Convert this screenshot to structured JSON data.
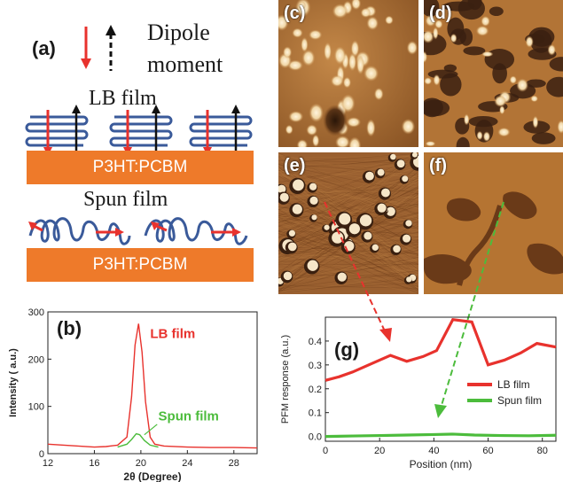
{
  "panel_a": {
    "label": "(a)",
    "legend_line1": "Dipole",
    "legend_line2": "moment",
    "lb_title": "LB film",
    "spun_title": "Spun film",
    "substrate_top": "P3HT:PCBM",
    "substrate_bottom": "P3HT:PCBM",
    "colors": {
      "dipole_red": "#e8322d",
      "dipole_black": "#111111",
      "chain": "#3a5a9a",
      "substrate": "#ee7a2a"
    }
  },
  "panel_b": {
    "label": "(b)"
  },
  "afm": {
    "c_label": "(c)",
    "d_label": "(d)",
    "e_label": "(e)",
    "f_label": "(f)",
    "colors": {
      "base": "#a86a2a",
      "bright": "#f4e0b8",
      "dark": "#3a2010"
    }
  },
  "panel_g": {
    "label": "(g)"
  },
  "chart_data": [
    {
      "type": "line",
      "panel": "b",
      "xlabel": "2θ (Degree)",
      "ylabel": "Intensity ( a.u.)",
      "xlim": [
        12,
        30
      ],
      "ylim": [
        0,
        300
      ],
      "xticks": [
        12,
        16,
        20,
        24,
        28
      ],
      "yticks": [
        0,
        100,
        200,
        300
      ],
      "series": [
        {
          "name": "LB film",
          "color": "#e8322d",
          "x": [
            12,
            14,
            16,
            17,
            18,
            18.8,
            19.2,
            19.5,
            19.8,
            20.1,
            20.4,
            20.8,
            21.2,
            22,
            24,
            26,
            28,
            30
          ],
          "y": [
            20,
            17,
            14,
            15,
            18,
            35,
            120,
            230,
            275,
            215,
            110,
            35,
            20,
            16,
            14,
            13,
            13,
            12
          ]
        },
        {
          "name": "Spun film",
          "color": "#4cbc3c",
          "x": [
            18,
            18.8,
            19.2,
            19.6,
            19.9,
            20.3,
            20.8,
            21.5
          ],
          "y": [
            14,
            20,
            30,
            42,
            40,
            28,
            18,
            14
          ]
        }
      ],
      "annotations": [
        "LB film",
        "Spun film"
      ]
    },
    {
      "type": "line",
      "panel": "g",
      "xlabel": "Position (nm)",
      "ylabel": "PFM response (a.u.)",
      "xlim": [
        0,
        85
      ],
      "ylim": [
        -0.02,
        0.5
      ],
      "xticks": [
        0,
        20,
        40,
        60,
        80
      ],
      "yticks": [
        0.0,
        0.1,
        0.2,
        0.3,
        0.4
      ],
      "legend_position": "middle-right",
      "series": [
        {
          "name": "LB film",
          "color": "#e8322d",
          "x": [
            0,
            5,
            10,
            16,
            24,
            30,
            36,
            41,
            47,
            54,
            60,
            66,
            72,
            78,
            85
          ],
          "y": [
            0.235,
            0.25,
            0.27,
            0.3,
            0.34,
            0.315,
            0.335,
            0.36,
            0.49,
            0.48,
            0.3,
            0.32,
            0.35,
            0.39,
            0.375
          ]
        },
        {
          "name": "Spun film",
          "color": "#4cbc3c",
          "x": [
            0,
            10,
            20,
            30,
            40,
            47,
            55,
            65,
            75,
            85
          ],
          "y": [
            0.0,
            0.002,
            0.004,
            0.006,
            0.008,
            0.01,
            0.006,
            0.004,
            0.003,
            0.005
          ]
        }
      ]
    }
  ]
}
